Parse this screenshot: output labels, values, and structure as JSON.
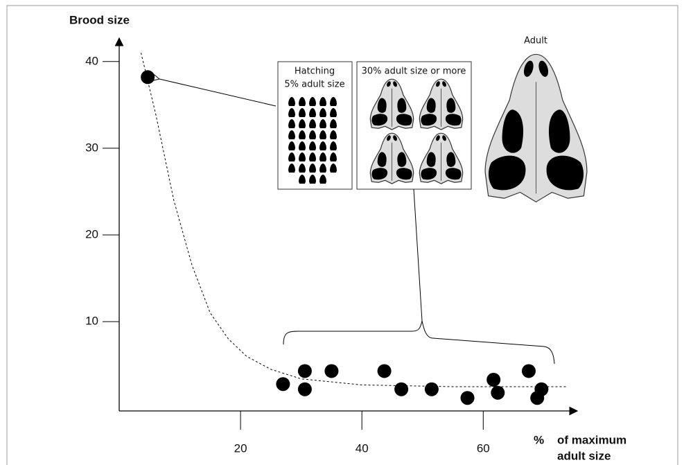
{
  "chart_data": {
    "type": "scatter",
    "y_label": "Brood size",
    "x_label_unit": "%",
    "x_label": [
      "of maximum",
      "adult size"
    ],
    "x": [
      4.7,
      27,
      30.6,
      30.6,
      35,
      43.7,
      46.5,
      51.5,
      57.4,
      61.7,
      62.4,
      67.5,
      69.6,
      68.9
    ],
    "values": [
      38.2,
      2.8,
      4.3,
      2.2,
      4.3,
      4.3,
      2.2,
      2.2,
      1.2,
      3.3,
      1.8,
      4.3,
      2.2,
      1.2
    ],
    "color": "#000000",
    "curve": {
      "x": [
        3.6,
        6,
        9,
        12,
        15,
        18,
        21,
        25,
        30,
        40,
        55,
        73.8
      ],
      "values": [
        41,
        34,
        24,
        16.5,
        11,
        8,
        6,
        4.5,
        3.4,
        2.7,
        2.5,
        2.5
      ]
    },
    "xlim": [
      0,
      75.5
    ],
    "ylim": [
      -0.3,
      42.7
    ],
    "xticks": [
      20,
      40,
      60
    ],
    "yticks": [
      10,
      20,
      30,
      40
    ],
    "insets": {
      "hatching": [
        "Hatching",
        "5% adult size"
      ],
      "juvenile": "30% adult size or more",
      "adult": "Adult"
    }
  }
}
